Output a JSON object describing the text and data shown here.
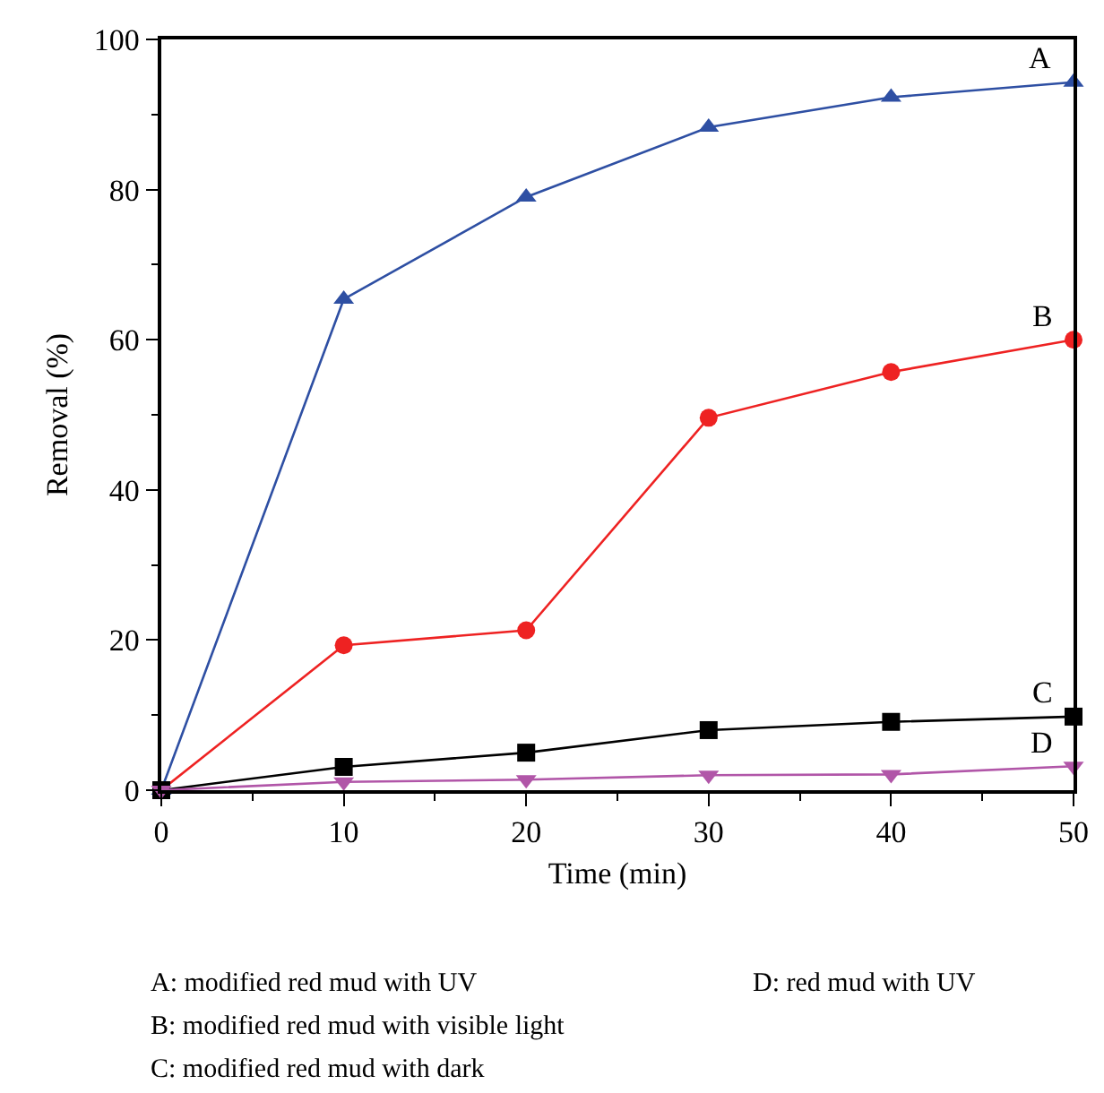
{
  "chart_data": {
    "type": "line",
    "xlabel": "Time (min)",
    "ylabel": "Removal (%)",
    "x": [
      0,
      10,
      20,
      30,
      40,
      50
    ],
    "series": [
      {
        "name": "A",
        "color": "#2e4fa3",
        "marker": "triangle",
        "values": [
          0,
          65.4,
          79,
          88.3,
          92.3,
          94.3
        ]
      },
      {
        "name": "B",
        "color": "#ee2222",
        "marker": "circle",
        "values": [
          0,
          19.3,
          21.3,
          49.6,
          55.7,
          60
        ]
      },
      {
        "name": "C",
        "color": "#000000",
        "marker": "square",
        "values": [
          0,
          3.1,
          5,
          8,
          9.1,
          9.8
        ]
      },
      {
        "name": "D",
        "color": "#b156a8",
        "marker": "triangle-down",
        "values": [
          0,
          1.1,
          1.4,
          2,
          2.1,
          3.2
        ]
      }
    ],
    "xlim": [
      0,
      50
    ],
    "xticks": [
      0,
      10,
      20,
      30,
      40,
      50
    ],
    "ylim": [
      0,
      100
    ],
    "yticks": [
      0,
      20,
      40,
      60,
      80,
      100
    ],
    "line_style": "solid",
    "annotations": [
      "A: modified red mud with UV",
      "B: modified red mud with visible light",
      "C: modified red mud with dark",
      "D: red mud with UV"
    ]
  }
}
